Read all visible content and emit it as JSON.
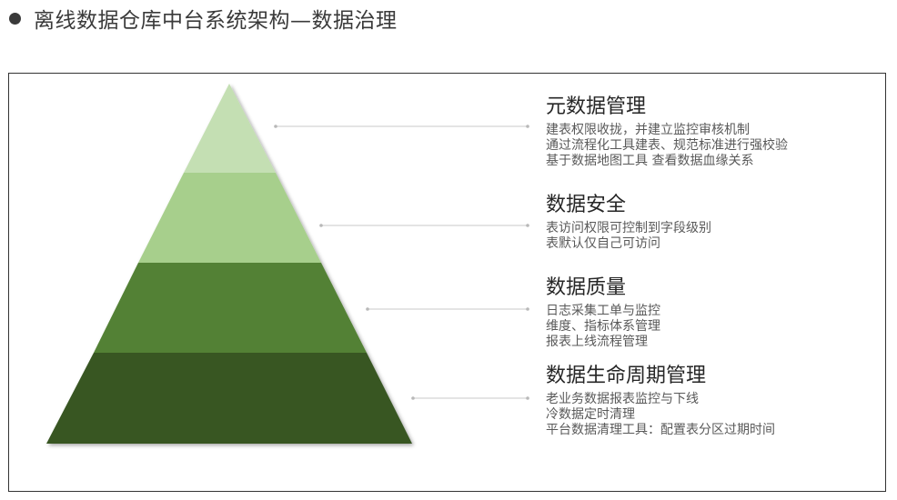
{
  "page": {
    "title": "离线数据仓库中台系统架构—数据治理"
  },
  "colors": {
    "tier1": "#c4dfb3",
    "tier2": "#a7cf8c",
    "tier3": "#538134",
    "tier4": "#375623",
    "connector": "#c8c8c8",
    "frame": "#333333"
  },
  "tiers": [
    {
      "heading": "元数据管理",
      "items": [
        "建表权限收拢，并建立监控审核机制",
        "通过流程化工具建表、规范标准进行强校验",
        "基于数据地图工具 查看数据血缘关系"
      ]
    },
    {
      "heading": "数据安全",
      "items": [
        "表访问权限可控制到字段级别",
        "表默认仅自己可访问"
      ]
    },
    {
      "heading": "数据质量",
      "items": [
        "日志采集工单与监控",
        "维度、指标体系管理",
        "报表上线流程管理"
      ]
    },
    {
      "heading": "数据生命周期管理",
      "items": [
        "老业务数据报表监控与下线",
        "冷数据定时清理",
        "平台数据清理工具：配置表分区过期时间"
      ]
    }
  ]
}
